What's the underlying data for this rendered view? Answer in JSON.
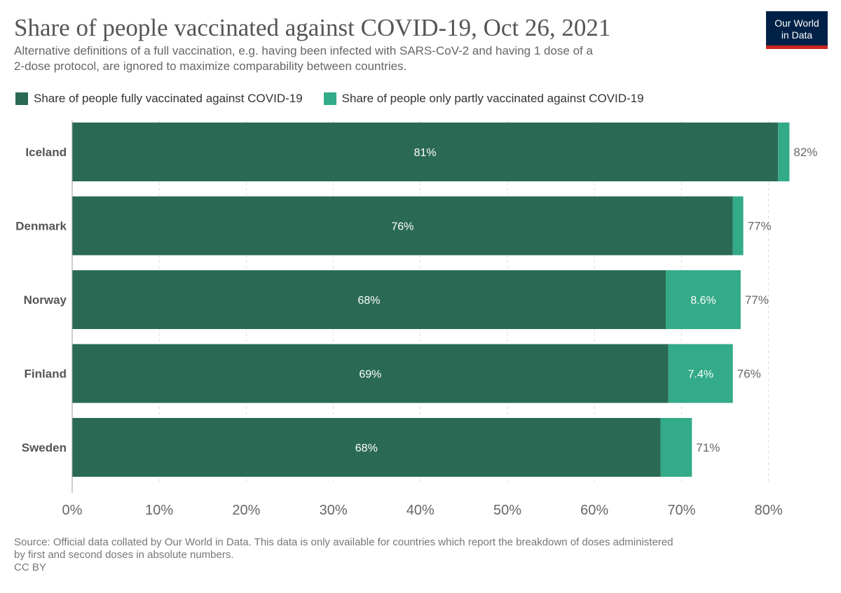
{
  "header": {
    "title": "Share of people vaccinated against COVID-19, Oct 26, 2021",
    "subtitle_line1": "Alternative definitions of a full vaccination, e.g. having been infected with SARS-CoV-2 and having 1 dose of a",
    "subtitle_line2": "2-dose protocol, are ignored to maximize comparability between countries."
  },
  "logo": {
    "line1": "Our World",
    "line2": "in Data",
    "bg_color": "#002147",
    "stripe_color": "#ce261e"
  },
  "legend": [
    {
      "label": "Share of people fully vaccinated against COVID-19",
      "color": "#2a6a55"
    },
    {
      "label": "Share of people only partly vaccinated against COVID-19",
      "color": "#33aa88"
    }
  ],
  "chart_data": {
    "type": "bar",
    "orientation": "horizontal",
    "stacked": true,
    "categories": [
      "Iceland",
      "Denmark",
      "Norway",
      "Finland",
      "Sweden"
    ],
    "series": [
      {
        "name": "Share of people fully vaccinated against COVID-19",
        "color": "#2a6a55",
        "values": [
          81.1,
          75.9,
          68.2,
          68.5,
          67.6
        ],
        "labels": [
          "81%",
          "76%",
          "68%",
          "69%",
          "68%"
        ]
      },
      {
        "name": "Share of people only partly vaccinated against COVID-19",
        "color": "#33aa88",
        "values": [
          1.3,
          1.2,
          8.6,
          7.4,
          3.6
        ],
        "labels": [
          "",
          "",
          "8.6%",
          "7.4%",
          ""
        ]
      }
    ],
    "totals": [
      "82%",
      "77%",
      "77%",
      "76%",
      "71%"
    ],
    "xlim": [
      0,
      82.5
    ],
    "xticks": [
      0,
      10,
      20,
      30,
      40,
      50,
      60,
      70,
      80
    ],
    "xtick_labels": [
      "0%",
      "10%",
      "20%",
      "30%",
      "40%",
      "50%",
      "60%",
      "70%",
      "80%"
    ],
    "grid": true,
    "legend_position": "top-left"
  },
  "footer": {
    "source_line1": "Source: Official data collated by Our World in Data. This data is only available for countries which report the breakdown of doses administered",
    "source_line2": "by first and second doses in absolute numbers.",
    "license": "CC BY"
  }
}
